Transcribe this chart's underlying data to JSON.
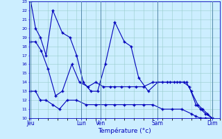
{
  "xlabel": "Température (°c)",
  "bg_color": "#cceeff",
  "line_color": "#0000bb",
  "grid_color": "#99cccc",
  "ylim": [
    10,
    23
  ],
  "yticks": [
    10,
    11,
    12,
    13,
    14,
    15,
    16,
    17,
    18,
    19,
    20,
    21,
    22,
    23
  ],
  "xlim": [
    0,
    20
  ],
  "day_ticks_x": [
    0.2,
    5.5,
    7.5,
    13.5,
    19.2
  ],
  "day_labels": [
    "Jeu",
    "Lun",
    "Ven",
    "Sam",
    "Dim"
  ],
  "line1_x": [
    0.2,
    0.7,
    1.2,
    1.8,
    2.5,
    3.5,
    4.3,
    5.0,
    5.7,
    6.5,
    7.2,
    8.0,
    9.0,
    10.0,
    10.7,
    11.5,
    12.5,
    13.5,
    14.5,
    15.2,
    15.8,
    16.5,
    17.0,
    17.7,
    18.2,
    18.7,
    19.2
  ],
  "line1_y": [
    23,
    20,
    19,
    17,
    22,
    19.5,
    19,
    17,
    14,
    13,
    13,
    16,
    20.7,
    18.5,
    18,
    14.5,
    13,
    14,
    14,
    14,
    14,
    14,
    13,
    11.5,
    11,
    10.5,
    10
  ],
  "line2_x": [
    0.2,
    0.7,
    1.3,
    2.0,
    2.8,
    3.5,
    4.5,
    5.3,
    6.2,
    7.0,
    7.8,
    8.5,
    9.0,
    9.7,
    10.5,
    11.2,
    12.0,
    13.0,
    14.0,
    14.8,
    15.5,
    16.2,
    16.8,
    17.5,
    18.0,
    18.5,
    19.2
  ],
  "line2_y": [
    18.5,
    18.5,
    17.5,
    15.5,
    12.5,
    13,
    16,
    14,
    13.5,
    14,
    13.5,
    13.5,
    13.5,
    13.5,
    13.5,
    13.5,
    13.5,
    14,
    14,
    14,
    14,
    14,
    13.5,
    11.5,
    11,
    10.5,
    10
  ],
  "line3_x": [
    0.2,
    0.7,
    1.2,
    1.8,
    2.5,
    3.2,
    4.0,
    5.0,
    6.0,
    7.0,
    8.0,
    9.0,
    10.0,
    11.0,
    12.0,
    13.0,
    14.0,
    15.0,
    16.0,
    17.0,
    17.5,
    18.0,
    18.5,
    19.2
  ],
  "line3_y": [
    13,
    13,
    12,
    12,
    11.5,
    11,
    12,
    12,
    11.5,
    11.5,
    11.5,
    11.5,
    11.5,
    11.5,
    11.5,
    11.5,
    11,
    11,
    11,
    10.5,
    10.2,
    10,
    10,
    10
  ]
}
